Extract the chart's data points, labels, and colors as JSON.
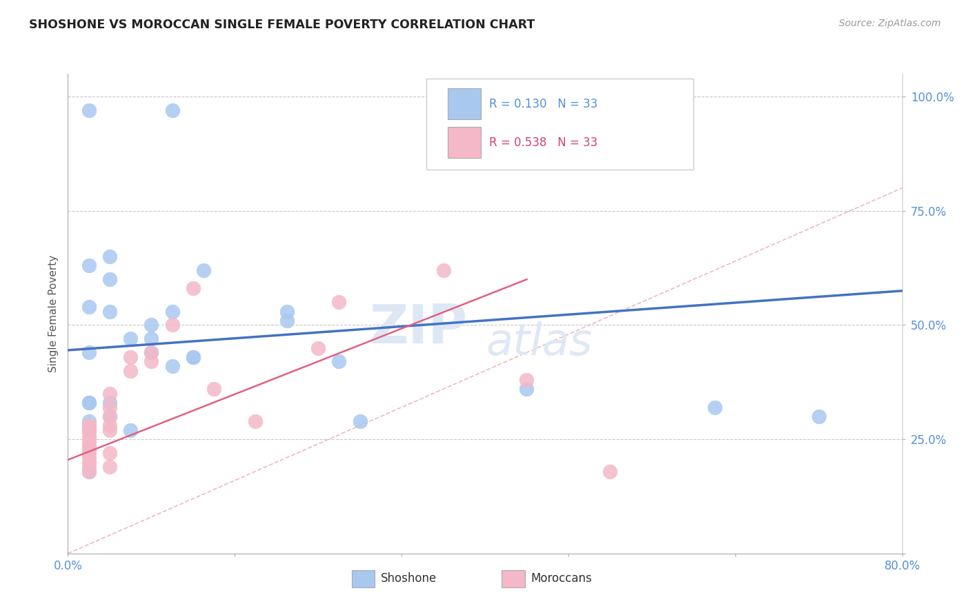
{
  "title": "SHOSHONE VS MOROCCAN SINGLE FEMALE POVERTY CORRELATION CHART",
  "source": "Source: ZipAtlas.com",
  "ylabel": "Single Female Poverty",
  "xlim": [
    0.0,
    0.8
  ],
  "ylim": [
    0.0,
    1.05
  ],
  "xticks": [
    0.0,
    0.16,
    0.32,
    0.48,
    0.64,
    0.8
  ],
  "xticklabels": [
    "0.0%",
    "",
    "",
    "",
    "",
    "80.0%"
  ],
  "yticks": [
    0.0,
    0.25,
    0.5,
    0.75,
    1.0
  ],
  "yticklabels": [
    "",
    "25.0%",
    "50.0%",
    "75.0%",
    "100.0%"
  ],
  "R_shoshone": 0.13,
  "R_moroccan": 0.538,
  "N_shoshone": 33,
  "N_moroccan": 33,
  "shoshone_color": "#A8C8F0",
  "moroccan_color": "#F4B8C8",
  "shoshone_line_color": "#4472C4",
  "moroccan_line_color": "#E06080",
  "diagonal_color": "#E8B0C0",
  "shoshone_x": [
    0.02,
    0.1,
    0.13,
    0.02,
    0.04,
    0.04,
    0.08,
    0.08,
    0.1,
    0.12,
    0.02,
    0.04,
    0.06,
    0.02,
    0.02,
    0.02,
    0.02,
    0.04,
    0.04,
    0.06,
    0.21,
    0.21,
    0.26,
    0.44,
    0.62,
    0.72,
    0.02,
    0.02,
    0.02,
    0.08,
    0.1,
    0.12,
    0.28
  ],
  "shoshone_y": [
    0.97,
    0.97,
    0.62,
    0.63,
    0.65,
    0.6,
    0.5,
    0.47,
    0.53,
    0.43,
    0.54,
    0.53,
    0.47,
    0.33,
    0.33,
    0.29,
    0.27,
    0.33,
    0.3,
    0.27,
    0.53,
    0.51,
    0.42,
    0.36,
    0.32,
    0.3,
    0.44,
    0.18,
    0.23,
    0.44,
    0.41,
    0.43,
    0.29
  ],
  "moroccan_x": [
    0.02,
    0.02,
    0.02,
    0.02,
    0.02,
    0.02,
    0.02,
    0.02,
    0.02,
    0.02,
    0.02,
    0.02,
    0.02,
    0.04,
    0.04,
    0.04,
    0.04,
    0.04,
    0.04,
    0.04,
    0.06,
    0.06,
    0.08,
    0.08,
    0.1,
    0.12,
    0.14,
    0.18,
    0.24,
    0.26,
    0.36,
    0.44,
    0.52
  ],
  "moroccan_y": [
    0.28,
    0.28,
    0.27,
    0.27,
    0.26,
    0.25,
    0.24,
    0.23,
    0.22,
    0.21,
    0.2,
    0.19,
    0.18,
    0.35,
    0.32,
    0.3,
    0.28,
    0.27,
    0.22,
    0.19,
    0.43,
    0.4,
    0.44,
    0.42,
    0.5,
    0.58,
    0.36,
    0.29,
    0.45,
    0.55,
    0.62,
    0.38,
    0.18
  ],
  "blue_line_x0": 0.0,
  "blue_line_y0": 0.445,
  "blue_line_x1": 0.8,
  "blue_line_y1": 0.575,
  "pink_line_x0": 0.0,
  "pink_line_y0": 0.205,
  "pink_line_x1": 0.44,
  "pink_line_y1": 0.6
}
